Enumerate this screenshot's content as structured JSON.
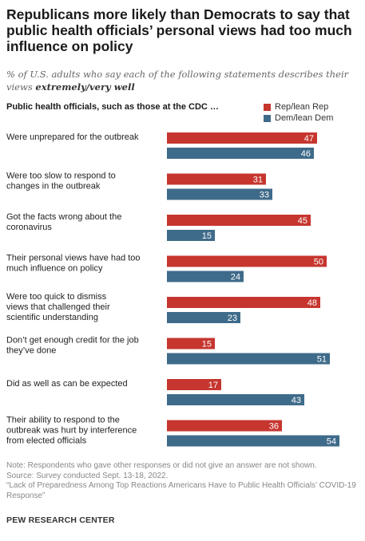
{
  "title": "Republicans more likely than Democrats to say that public health officials’ personal views had too much influence on policy",
  "subtitle_prefix": "% of U.S. adults who say each of the following statements describes their views ",
  "subtitle_emphasis": "extremely/very well",
  "heading": "Public health officials, such as those at the CDC …",
  "colors": {
    "rep": "#c6362f",
    "dem": "#3f6b8a"
  },
  "chart_data": {
    "type": "bar",
    "orientation": "horizontal",
    "categories": [
      [
        "Were unprepared for the outbreak"
      ],
      [
        "Were too slow to respond to",
        "changes in the outbreak"
      ],
      [
        "Got the facts wrong about the",
        "coronavirus"
      ],
      [
        "Their personal views have had too",
        "much influence on policy"
      ],
      [
        "Were too quick to dismiss",
        "views that challenged their",
        "scientific understanding"
      ],
      [
        "Don’t get enough credit for the job",
        "they’ve done"
      ],
      [
        "Did as well as can be expected"
      ],
      [
        "Their ability to respond to the",
        "outbreak was hurt by interference",
        "from elected officials"
      ]
    ],
    "series": [
      {
        "name": "Rep/lean Rep",
        "values": [
          47,
          31,
          45,
          50,
          48,
          15,
          17,
          36
        ]
      },
      {
        "name": "Dem/lean Dem",
        "values": [
          46,
          33,
          15,
          24,
          23,
          51,
          43,
          54
        ]
      }
    ]
  },
  "note": "Note: Respondents who gave other responses or did not give an answer are not shown.",
  "source": "Source: Survey conducted Sept. 13-18, 2022.",
  "report": "“Lack of Preparedness Among Top Reactions Americans Have to Public Health Officials’ COVID-19 Response”",
  "brand": "PEW RESEARCH CENTER"
}
